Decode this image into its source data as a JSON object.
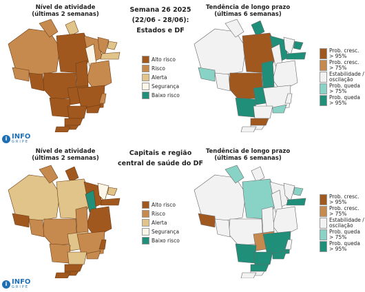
{
  "colors": {
    "alto": "#a0581f",
    "risco": "#c68a4e",
    "alerta": "#e1c48a",
    "seguranca": "#fbf6e7",
    "baixo": "#1f8f7a",
    "stable": "#f2f2f2",
    "queda75": "#89d3c6",
    "cresc75": "#c68a4e",
    "cresc95": "#a0581f",
    "queda95": "#1f8f7a"
  },
  "top": {
    "activity_title_line1": "Nível de atividade",
    "activity_title_line2": "(últimas 2 semanas)",
    "center_line1": "Semana 26 2025",
    "center_line2": "(22/06 - 28/06):",
    "center_line3": "Estados e DF",
    "trend_title_line1": "Tendência de longo prazo",
    "trend_title_line2": "(últimas 6 semanas)"
  },
  "bottom": {
    "activity_title_line1": "Nível de atividade",
    "activity_title_line2": "(últimas 2 semanas)",
    "center_line1": "Capitais e região",
    "center_line2": "central de saúde do DF",
    "trend_title_line1": "Tendência de longo prazo",
    "trend_title_line2": "(últimas 6 semanas)"
  },
  "activity_legend": [
    {
      "label": "Alto risco",
      "color": "#a0581f"
    },
    {
      "label": "Risco",
      "color": "#c68a4e"
    },
    {
      "label": "Alerta",
      "color": "#e1c48a"
    },
    {
      "label": "Segurança",
      "color": "#fbf6e7"
    },
    {
      "label": "Baixo risco",
      "color": "#1f8f7a"
    }
  ],
  "trend_legend": [
    {
      "label1": "Prob. cresc.",
      "label2": "> 95%",
      "color": "#a0581f"
    },
    {
      "label1": "Prob. cresc.",
      "label2": "> 75%",
      "color": "#c68a4e"
    },
    {
      "label1": "Estabilidade /",
      "label2": "oscilação",
      "color": "#f2f2f2"
    },
    {
      "label1": "Prob. queda",
      "label2": "> 75%",
      "color": "#89d3c6"
    },
    {
      "label1": "Prob. queda",
      "label2": "> 95%",
      "color": "#1f8f7a"
    }
  ],
  "logo": {
    "mark": "i",
    "text": "INFO",
    "sub": "GRIPE"
  }
}
